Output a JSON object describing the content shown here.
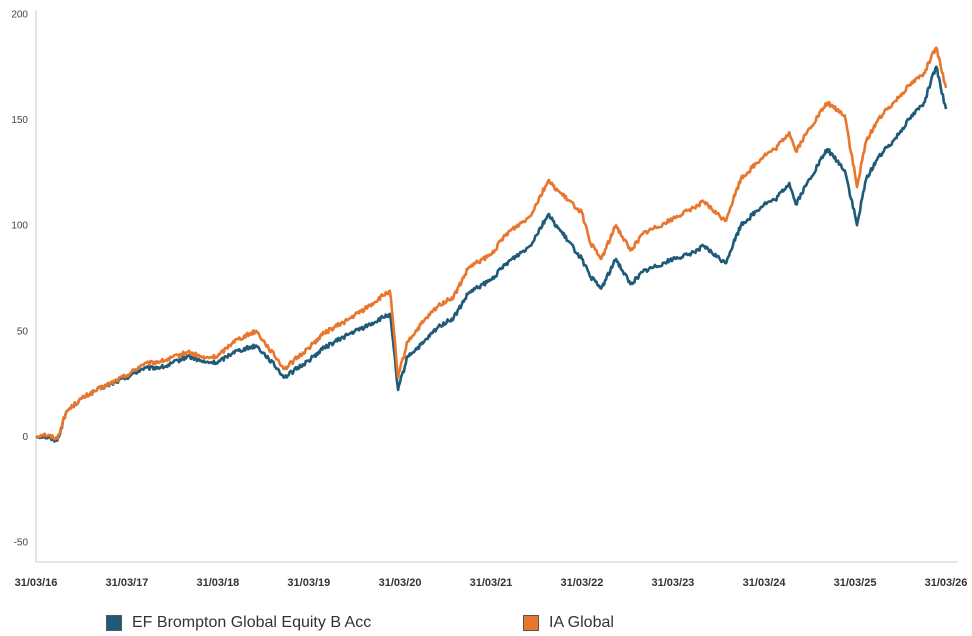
{
  "chart_data": {
    "type": "line",
    "title": "",
    "xlabel": "",
    "ylabel": "",
    "ylim": [
      -50,
      200
    ],
    "y_ticks": [
      -50,
      0,
      50,
      100,
      150,
      200
    ],
    "x_ticks": [
      "31/03/16",
      "31/03/17",
      "31/03/18",
      "31/03/19",
      "31/03/20",
      "31/03/21",
      "31/03/22",
      "31/03/23",
      "31/03/24",
      "31/03/25",
      "31/03/26"
    ],
    "grid": false,
    "legend_position": "bottom",
    "series": [
      {
        "name": "EF Brompton Global Equity B Acc",
        "color": "#1f5a78",
        "points": [
          [
            "2016-03-31",
            0
          ],
          [
            "2016-05-01",
            0
          ],
          [
            "2016-06-24",
            -2
          ],
          [
            "2016-08-01",
            12
          ],
          [
            "2016-10-01",
            18
          ],
          [
            "2016-12-01",
            22
          ],
          [
            "2017-03-31",
            28
          ],
          [
            "2017-06-01",
            32
          ],
          [
            "2017-09-01",
            33
          ],
          [
            "2017-12-01",
            38
          ],
          [
            "2018-02-06",
            35
          ],
          [
            "2018-03-31",
            35
          ],
          [
            "2018-06-01",
            40
          ],
          [
            "2018-09-01",
            43
          ],
          [
            "2018-10-20",
            37
          ],
          [
            "2018-12-24",
            28
          ],
          [
            "2019-03-31",
            36
          ],
          [
            "2019-06-01",
            42
          ],
          [
            "2019-09-01",
            48
          ],
          [
            "2019-12-01",
            53
          ],
          [
            "2020-02-19",
            58
          ],
          [
            "2020-03-23",
            22
          ],
          [
            "2020-05-01",
            38
          ],
          [
            "2020-07-01",
            44
          ],
          [
            "2020-09-01",
            52
          ],
          [
            "2020-11-01",
            56
          ],
          [
            "2021-01-01",
            68
          ],
          [
            "2021-03-31",
            74
          ],
          [
            "2021-06-01",
            82
          ],
          [
            "2021-09-01",
            90
          ],
          [
            "2021-11-15",
            105
          ],
          [
            "2022-01-05",
            97
          ],
          [
            "2022-03-31",
            84
          ],
          [
            "2022-05-01",
            76
          ],
          [
            "2022-06-16",
            70
          ],
          [
            "2022-08-15",
            84
          ],
          [
            "2022-10-12",
            72
          ],
          [
            "2022-12-01",
            78
          ],
          [
            "2023-03-31",
            84
          ],
          [
            "2023-06-01",
            86
          ],
          [
            "2023-08-01",
            90
          ],
          [
            "2023-10-27",
            82
          ],
          [
            "2023-12-29",
            100
          ],
          [
            "2024-03-31",
            110
          ],
          [
            "2024-05-15",
            112
          ],
          [
            "2024-07-10",
            120
          ],
          [
            "2024-08-05",
            110
          ],
          [
            "2024-10-01",
            122
          ],
          [
            "2024-12-10",
            136
          ],
          [
            "2025-02-18",
            126
          ],
          [
            "2025-04-08",
            100
          ],
          [
            "2025-05-15",
            122
          ],
          [
            "2025-07-01",
            132
          ],
          [
            "2025-09-01",
            140
          ],
          [
            "2025-11-01",
            150
          ],
          [
            "2026-01-01",
            158
          ],
          [
            "2026-02-20",
            175
          ],
          [
            "2026-03-10",
            165
          ],
          [
            "2026-03-31",
            155
          ]
        ]
      },
      {
        "name": "IA Global",
        "color": "#e8762d",
        "points": [
          [
            "2016-03-31",
            0
          ],
          [
            "2016-05-01",
            1
          ],
          [
            "2016-06-24",
            -1
          ],
          [
            "2016-08-01",
            12
          ],
          [
            "2016-10-01",
            18
          ],
          [
            "2016-12-01",
            22
          ],
          [
            "2017-03-31",
            29
          ],
          [
            "2017-06-01",
            34
          ],
          [
            "2017-09-01",
            36
          ],
          [
            "2017-12-01",
            40
          ],
          [
            "2018-02-06",
            37
          ],
          [
            "2018-03-31",
            38
          ],
          [
            "2018-06-01",
            45
          ],
          [
            "2018-09-01",
            50
          ],
          [
            "2018-10-20",
            42
          ],
          [
            "2018-12-24",
            32
          ],
          [
            "2019-03-31",
            42
          ],
          [
            "2019-06-01",
            49
          ],
          [
            "2019-09-01",
            55
          ],
          [
            "2019-12-01",
            62
          ],
          [
            "2020-02-19",
            69
          ],
          [
            "2020-03-23",
            28
          ],
          [
            "2020-05-01",
            45
          ],
          [
            "2020-07-01",
            54
          ],
          [
            "2020-09-01",
            62
          ],
          [
            "2020-11-01",
            66
          ],
          [
            "2021-01-01",
            80
          ],
          [
            "2021-03-31",
            86
          ],
          [
            "2021-06-01",
            96
          ],
          [
            "2021-09-01",
            104
          ],
          [
            "2021-11-15",
            121
          ],
          [
            "2022-01-05",
            115
          ],
          [
            "2022-03-31",
            106
          ],
          [
            "2022-05-01",
            92
          ],
          [
            "2022-06-16",
            84
          ],
          [
            "2022-08-15",
            100
          ],
          [
            "2022-10-12",
            88
          ],
          [
            "2022-12-01",
            96
          ],
          [
            "2023-03-31",
            103
          ],
          [
            "2023-06-01",
            107
          ],
          [
            "2023-08-01",
            111
          ],
          [
            "2023-10-27",
            102
          ],
          [
            "2023-12-29",
            122
          ],
          [
            "2024-03-31",
            133
          ],
          [
            "2024-05-15",
            136
          ],
          [
            "2024-07-10",
            144
          ],
          [
            "2024-08-05",
            135
          ],
          [
            "2024-10-01",
            146
          ],
          [
            "2024-12-10",
            158
          ],
          [
            "2025-02-18",
            152
          ],
          [
            "2025-04-08",
            118
          ],
          [
            "2025-05-15",
            140
          ],
          [
            "2025-07-01",
            150
          ],
          [
            "2025-09-01",
            158
          ],
          [
            "2025-11-01",
            166
          ],
          [
            "2026-01-01",
            172
          ],
          [
            "2026-02-20",
            184
          ],
          [
            "2026-03-10",
            175
          ],
          [
            "2026-03-31",
            165
          ]
        ]
      }
    ]
  }
}
